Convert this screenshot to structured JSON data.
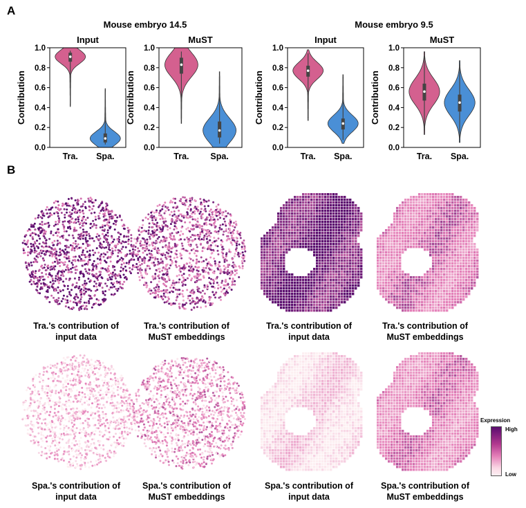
{
  "panel_a_label": "A",
  "panel_b_label": "B",
  "group_titles": [
    "Mouse embryo 14.5",
    "Mouse embryo 9.5"
  ],
  "chart_data": [
    {
      "type": "violin",
      "title": "Input",
      "dataset": "Mouse embryo 14.5",
      "ylabel": "Contribution",
      "ylim": [
        0,
        1
      ],
      "yticks": [
        "0.0",
        "0.2",
        "0.4",
        "0.6",
        "0.8",
        "1.0"
      ],
      "categories": [
        "Tra.",
        "Spa."
      ],
      "series": [
        {
          "name": "Tra.",
          "median": 0.91,
          "q1": 0.86,
          "q3": 0.95,
          "min": 0.41,
          "max": 1.0
        },
        {
          "name": "Spa.",
          "median": 0.09,
          "q1": 0.05,
          "q3": 0.14,
          "min": 0.0,
          "max": 0.59
        }
      ]
    },
    {
      "type": "violin",
      "title": "MuST",
      "dataset": "Mouse embryo 14.5",
      "ylabel": "Contribution",
      "ylim": [
        0,
        1
      ],
      "yticks": [
        "0.0",
        "0.2",
        "0.4",
        "0.6",
        "0.8",
        "1.0"
      ],
      "categories": [
        "Tra.",
        "Spa."
      ],
      "series": [
        {
          "name": "Tra.",
          "median": 0.83,
          "q1": 0.74,
          "q3": 0.9,
          "min": 0.24,
          "max": 1.0
        },
        {
          "name": "Spa.",
          "median": 0.17,
          "q1": 0.1,
          "q3": 0.26,
          "min": 0.0,
          "max": 0.76
        }
      ]
    },
    {
      "type": "violin",
      "title": "Input",
      "dataset": "Mouse embryo 9.5",
      "ylabel": "Contribution",
      "ylim": [
        0,
        1
      ],
      "yticks": [
        "0.0",
        "0.2",
        "0.4",
        "0.6",
        "0.8",
        "1.0"
      ],
      "categories": [
        "Tra.",
        "Spa."
      ],
      "series": [
        {
          "name": "Tra.",
          "median": 0.77,
          "q1": 0.71,
          "q3": 0.82,
          "min": 0.27,
          "max": 0.98
        },
        {
          "name": "Spa.",
          "median": 0.24,
          "q1": 0.18,
          "q3": 0.29,
          "min": 0.04,
          "max": 0.73
        }
      ]
    },
    {
      "type": "violin",
      "title": "MuST",
      "dataset": "Mouse embryo 9.5",
      "ylabel": "Contribution",
      "ylim": [
        0,
        1
      ],
      "yticks": [
        "0.0",
        "0.2",
        "0.4",
        "0.6",
        "0.8",
        "1.0"
      ],
      "categories": [
        "Tra.",
        "Spa."
      ],
      "series": [
        {
          "name": "Tra.",
          "median": 0.56,
          "q1": 0.47,
          "q3": 0.64,
          "min": 0.13,
          "max": 0.96
        },
        {
          "name": "Spa.",
          "median": 0.45,
          "q1": 0.36,
          "q3": 0.53,
          "min": 0.05,
          "max": 0.87
        }
      ]
    }
  ],
  "colors": {
    "tra": "#d4608f",
    "spa": "#4a8fd6",
    "cmap_low": "#fdf0f2",
    "cmap_mid": "#e47fb8",
    "cmap_high": "#5a0d6e"
  },
  "maps": [
    {
      "caption_line1": "Tra.'s contribution of",
      "caption_line2": "input data",
      "intensity": 0.85
    },
    {
      "caption_line1": "Tra.'s contribution of",
      "caption_line2": "MuST embeddings",
      "intensity": 0.68
    },
    {
      "caption_line1": "Tra.'s contribution of",
      "caption_line2": "input data",
      "intensity": 0.9
    },
    {
      "caption_line1": "Tra.'s contribution of",
      "caption_line2": "MuST embeddings",
      "intensity": 0.55
    },
    {
      "caption_line1": "Spa.'s contribution of",
      "caption_line2": "input data",
      "intensity": 0.18
    },
    {
      "caption_line1": "Spa.'s contribution of",
      "caption_line2": "MuST embeddings",
      "intensity": 0.38
    },
    {
      "caption_line1": "Spa.'s contribution of",
      "caption_line2": "input data",
      "intensity": 0.12
    },
    {
      "caption_line1": "Spa.'s contribution of",
      "caption_line2": "MuST embeddings",
      "intensity": 0.5
    }
  ],
  "legend": {
    "title": "Expression",
    "high": "High",
    "low": "Low"
  }
}
